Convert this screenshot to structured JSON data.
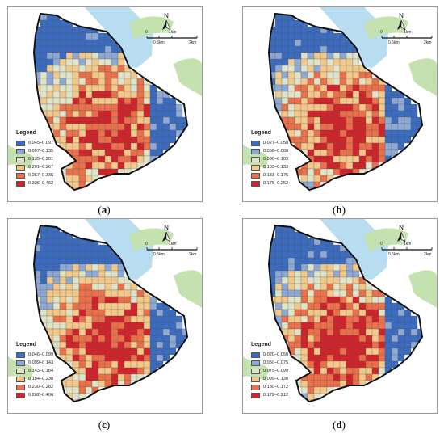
{
  "map_labels": {
    "north_label": "N",
    "scale_0": "0",
    "scale_05": "0.5km",
    "scale_1": "1km",
    "scale_2": "2km",
    "legend_title": "Legend"
  },
  "colors": {
    "class_1": "#3b6cc0",
    "class_2": "#8ea9d4",
    "class_3": "#dfe4c8",
    "class_4": "#f2c98a",
    "class_5": "#e9704a",
    "class_6": "#d0232a",
    "water": "#b8dcf0",
    "green": "#c3e2b0"
  },
  "panels": [
    {
      "caption_open": "(",
      "caption_letter": "a",
      "caption_close": ")",
      "legend": [
        "0.045–0.097",
        "0.097–0.135",
        "0.135–0.201",
        "0.201–0.267",
        "0.267–0.336",
        "0.336–0.462"
      ]
    },
    {
      "caption_open": "(",
      "caption_letter": "b",
      "caption_close": ")",
      "legend": [
        "0.027–0.058",
        "0.058–0.080",
        "0.080–0.103",
        "0.103–0.133",
        "0.133–0.175",
        "0.175–0.252"
      ]
    },
    {
      "caption_open": "(",
      "caption_letter": "c",
      "caption_close": ")",
      "legend": [
        "0.046–0.099",
        "0.099–0.143",
        "0.143–0.184",
        "0.184–0.230",
        "0.230–0.282",
        "0.282–0.406"
      ]
    },
    {
      "caption_open": "(",
      "caption_letter": "d",
      "caption_close": ")",
      "legend": [
        "0.020–0.050",
        "0.050–0.075",
        "0.075–0.099",
        "0.099–0.130",
        "0.130–0.172",
        "0.172–0.212"
      ]
    }
  ]
}
